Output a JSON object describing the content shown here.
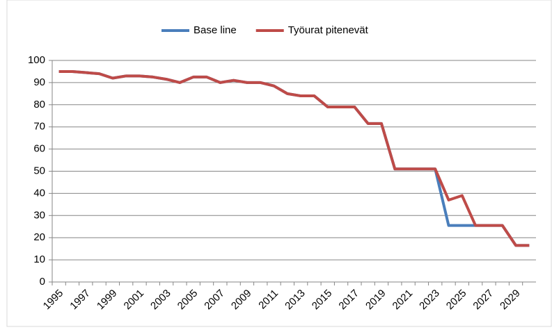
{
  "chart_data": {
    "type": "line",
    "categories": [
      "1995",
      null,
      "1997",
      null,
      "1999",
      null,
      "2001",
      null,
      "2003",
      null,
      "2005",
      null,
      "2007",
      null,
      "2009",
      null,
      "2011",
      null,
      "2013",
      null,
      "2015",
      null,
      "2017",
      null,
      "2019",
      null,
      "2021",
      null,
      "2023",
      null,
      "2025",
      null,
      "2027",
      null,
      "2029",
      null
    ],
    "series": [
      {
        "name": "Base line",
        "color": "#4a7ebb",
        "values": [
          95,
          95,
          94.5,
          94,
          92,
          93,
          93,
          92.5,
          91.5,
          90,
          92.5,
          92.5,
          90,
          91,
          90,
          90,
          88.5,
          85,
          84,
          84,
          79,
          79,
          79,
          71.5,
          71.5,
          51,
          51,
          51,
          51,
          25.5,
          25.5,
          25.5,
          25.5,
          25.5,
          16.5,
          16.5
        ]
      },
      {
        "name": "Työurat pitenevät",
        "color": "#be4b48",
        "values": [
          95,
          95,
          94.5,
          94,
          92,
          93,
          93,
          92.5,
          91.5,
          90,
          92.5,
          92.5,
          90,
          91,
          90,
          90,
          88.5,
          85,
          84,
          84,
          79,
          79,
          79,
          71.5,
          71.5,
          51,
          51,
          51,
          51,
          37,
          39,
          25.5,
          25.5,
          25.5,
          16.5,
          16.5
        ]
      }
    ],
    "ylim": [
      0,
      100
    ],
    "yticks": [
      0,
      10,
      20,
      30,
      40,
      50,
      60,
      70,
      80,
      90,
      100
    ],
    "grid": true,
    "legend": "top"
  }
}
